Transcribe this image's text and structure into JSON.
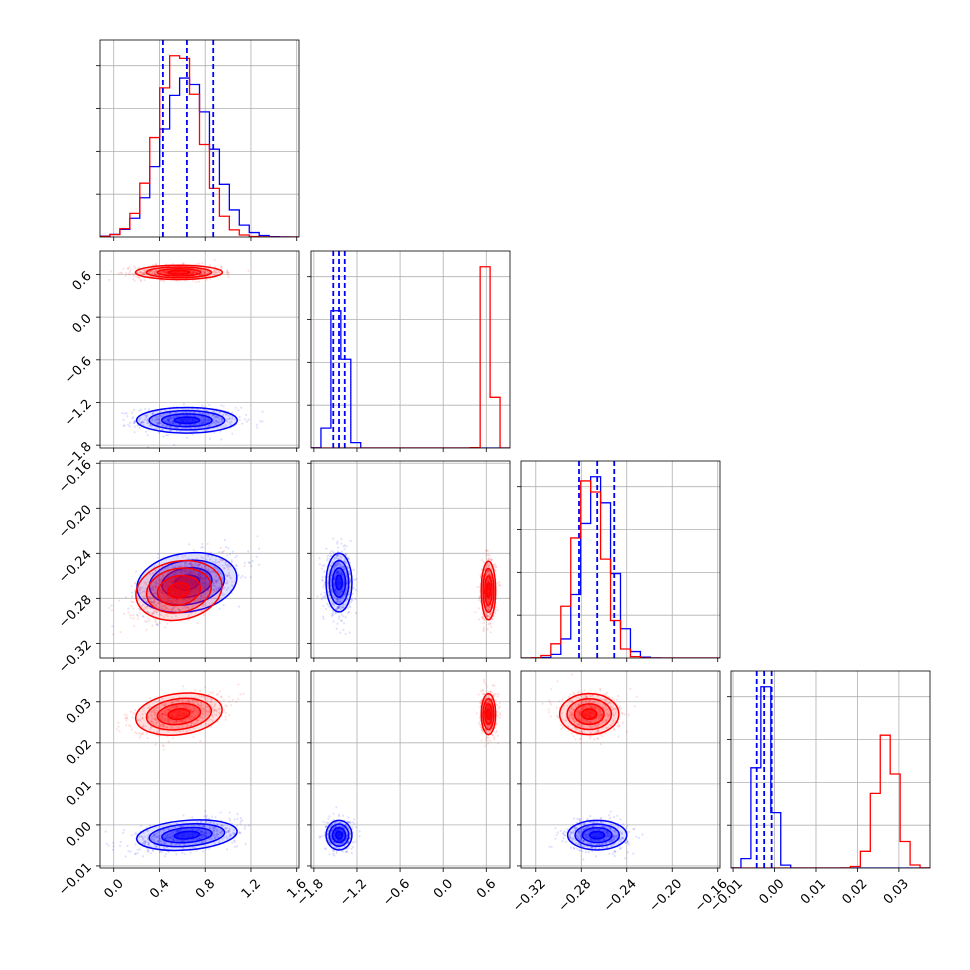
{
  "chart_data": {
    "type": "corner",
    "colors": {
      "series_a": "#0000ff",
      "series_b": "#ff0000"
    },
    "params": [
      {
        "ticks": [
          0.0,
          0.4,
          0.8,
          1.2,
          1.6
        ],
        "tick_labels": [
          "0.0",
          "0.4",
          "0.8",
          "1.2",
          "1.6"
        ],
        "range": [
          -0.12,
          1.62
        ]
      },
      {
        "ticks": [
          -1.8,
          -1.2,
          -0.6,
          0.0,
          0.6
        ],
        "tick_labels": [
          "−1.8",
          "−1.2",
          "−0.6",
          "0.0",
          "0.6"
        ],
        "range": [
          -1.84,
          0.93
        ]
      },
      {
        "ticks": [
          -0.32,
          -0.28,
          -0.24,
          -0.2,
          -0.16
        ],
        "tick_labels": [
          "−0.32",
          "−0.28",
          "−0.24",
          "−0.20",
          "−0.16"
        ],
        "range": [
          -0.333,
          -0.158
        ]
      },
      {
        "ticks": [
          -0.01,
          0.0,
          0.01,
          0.02,
          0.03
        ],
        "tick_labels": [
          "−0.01",
          "0.00",
          "0.01",
          "0.02",
          "0.03"
        ],
        "range": [
          -0.0105,
          0.0375
        ]
      }
    ],
    "distributions": {
      "series_a": [
        {
          "mean": 0.64,
          "sd": 0.22
        },
        {
          "mean": -1.45,
          "sd": 0.09
        },
        {
          "mean": -0.266,
          "sd": 0.013
        },
        {
          "mean": -0.0025,
          "sd": 0.0018
        }
      ],
      "series_b": [
        {
          "mean": 0.57,
          "sd": 0.19
        },
        {
          "mean": 0.63,
          "sd": 0.05
        },
        {
          "mean": -0.273,
          "sd": 0.013
        },
        {
          "mean": 0.027,
          "sd": 0.0025
        }
      ]
    },
    "quantile_lines_series_a": [
      [
        0.43,
        0.64,
        0.87
      ],
      [
        -1.53,
        -1.45,
        -1.37
      ],
      [
        -0.282,
        -0.266,
        -0.251
      ],
      [
        -0.0043,
        -0.0025,
        -0.0007
      ]
    ],
    "hist_bins": 20,
    "grid": true,
    "legend": "none"
  }
}
